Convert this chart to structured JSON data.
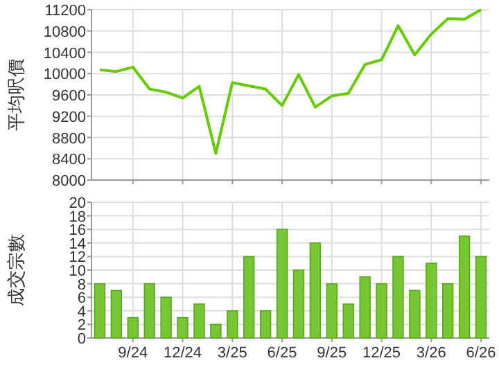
{
  "chart_data": [
    {
      "type": "line",
      "ylabel": "平均呎價",
      "categories": [
        null,
        null,
        null,
        null,
        null,
        null,
        null,
        null,
        null,
        null,
        null,
        null,
        null,
        null,
        null,
        null,
        null,
        null,
        null,
        null,
        null,
        null,
        null,
        null
      ],
      "series": [
        {
          "color": "#66cc00",
          "values": [
            10070,
            10040,
            10120,
            9710,
            9650,
            9540,
            9760,
            8500,
            9830,
            9770,
            9710,
            9400,
            9980,
            9370,
            9580,
            9630,
            10170,
            10260,
            10900,
            10350,
            10740,
            11030,
            11020,
            11200
          ]
        }
      ],
      "ylim": [
        8000,
        11200
      ],
      "yticks": [
        8000,
        8400,
        8800,
        9200,
        9600,
        10000,
        10400,
        10800,
        11200
      ],
      "grid": true,
      "tick_labels": "y"
    },
    {
      "type": "bar",
      "ylabel": "成交宗數",
      "categories": [
        null,
        null,
        "9/24",
        null,
        null,
        "12/24",
        null,
        null,
        "3/25",
        null,
        null,
        "6/25",
        null,
        null,
        "9/25",
        null,
        null,
        "12/25",
        null,
        null,
        "3/26",
        null,
        null,
        "6/26"
      ],
      "series": [
        {
          "color": "#77c732",
          "values": [
            8,
            7,
            3,
            8,
            6,
            3,
            5,
            2,
            4,
            12,
            4,
            16,
            10,
            14,
            8,
            5,
            9,
            8,
            12,
            7,
            11,
            8,
            15,
            12
          ]
        }
      ],
      "ylim": [
        0,
        20
      ],
      "yticks": [
        0,
        2,
        4,
        6,
        8,
        10,
        12,
        14,
        16,
        18,
        20
      ],
      "grid": true
    }
  ]
}
